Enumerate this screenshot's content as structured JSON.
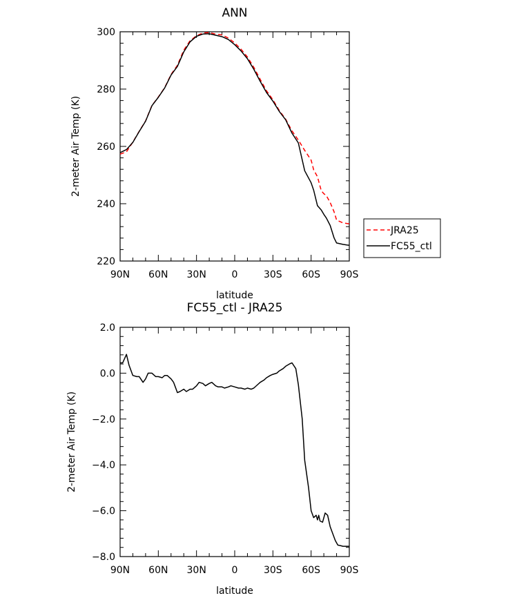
{
  "chart_data": [
    {
      "type": "line",
      "title": "ANN",
      "xlabel": "latitude",
      "ylabel": "2-meter Air Temp (K)",
      "xlim": [
        90,
        -90
      ],
      "ylim": [
        220,
        300
      ],
      "xticks": [
        90,
        60,
        30,
        0,
        -30,
        -60,
        -90
      ],
      "xtick_labels": [
        "90N",
        "60N",
        "30N",
        "0",
        "30S",
        "60S",
        "90S"
      ],
      "yticks": [
        220,
        240,
        260,
        280,
        300
      ],
      "ytick_labels": [
        "220",
        "240",
        "260",
        "280",
        "300"
      ],
      "grid": false,
      "legend": "right",
      "series": [
        {
          "name": "JRA25",
          "color": "#ff0000",
          "style": "dashed",
          "x": [
            90,
            85,
            80,
            75,
            70,
            65,
            60,
            55,
            50,
            45,
            40,
            35,
            30,
            25,
            20,
            15,
            10,
            5,
            0,
            -5,
            -10,
            -15,
            -20,
            -25,
            -30,
            -35,
            -40,
            -45,
            -50,
            -55,
            -60,
            -62,
            -65,
            -68,
            -70,
            -72,
            -75,
            -78,
            -80,
            -85,
            -88,
            -90
          ],
          "y": [
            257.3,
            258.1,
            261.5,
            265.3,
            268.9,
            274.3,
            277.2,
            280.5,
            285.1,
            288.3,
            293.6,
            296.9,
            298.6,
            299.6,
            299.7,
            299.2,
            298.9,
            297.8,
            296.1,
            293.9,
            291.2,
            287.6,
            283.4,
            279.4,
            276.3,
            272.5,
            269.5,
            265.4,
            262.2,
            258.6,
            255.2,
            251.8,
            249.4,
            244.5,
            243.5,
            242.8,
            240.4,
            237.2,
            234.3,
            233.3,
            233.1,
            233.0
          ]
        },
        {
          "name": "FC55_ctl",
          "color": "#000000",
          "style": "solid",
          "x": [
            90,
            85,
            80,
            75,
            70,
            65,
            60,
            55,
            50,
            45,
            40,
            35,
            30,
            25,
            20,
            15,
            10,
            5,
            0,
            -5,
            -10,
            -15,
            -20,
            -25,
            -30,
            -35,
            -40,
            -45,
            -50,
            -55,
            -60,
            -62,
            -65,
            -68,
            -70,
            -72,
            -75,
            -78,
            -80,
            -85,
            -88,
            -90
          ],
          "y": [
            257.8,
            258.9,
            261.4,
            265.2,
            268.8,
            274.2,
            277.1,
            280.4,
            284.9,
            287.9,
            293.0,
            296.5,
            298.4,
            299.2,
            299.3,
            298.8,
            298.3,
            297.3,
            295.5,
            293.3,
            290.6,
            286.9,
            282.7,
            278.8,
            275.8,
            272.2,
            269.3,
            264.6,
            261.2,
            251.5,
            247.3,
            244.7,
            239.3,
            237.8,
            236.3,
            235.0,
            232.4,
            228.1,
            226.3,
            225.8,
            225.6,
            225.5
          ]
        }
      ]
    },
    {
      "type": "line",
      "title": "FC55_ctl - JRA25",
      "xlabel": "latitude",
      "ylabel": "2-meter Air Temp (K)",
      "xlim": [
        90,
        -90
      ],
      "ylim": [
        -8.0,
        2.0
      ],
      "xticks": [
        90,
        60,
        30,
        0,
        -30,
        -60,
        -90
      ],
      "xtick_labels": [
        "90N",
        "60N",
        "30N",
        "0",
        "30S",
        "60S",
        "90S"
      ],
      "yticks": [
        -8.0,
        -6.0,
        -4.0,
        -2.0,
        0.0,
        2.0
      ],
      "ytick_labels": [
        "-8.0",
        "-6.0",
        "-4.0",
        "-2.0",
        "0.0",
        "2.0"
      ],
      "grid": false,
      "series": [
        {
          "color": "#000000",
          "style": "solid",
          "x": [
            90,
            88,
            85,
            83,
            80,
            77,
            75,
            72,
            70,
            68,
            65,
            62,
            60,
            57,
            55,
            53,
            50,
            48,
            45,
            43,
            40,
            38,
            35,
            33,
            30,
            28,
            25,
            23,
            20,
            18,
            15,
            13,
            10,
            8,
            5,
            3,
            0,
            -3,
            -5,
            -8,
            -10,
            -13,
            -15,
            -18,
            -20,
            -23,
            -25,
            -28,
            -30,
            -33,
            -35,
            -38,
            -40,
            -43,
            -45,
            -48,
            -50,
            -53,
            -55,
            -58,
            -60,
            -62,
            -64,
            -65,
            -66,
            -67,
            -69,
            -71,
            -73,
            -75,
            -77,
            -79,
            -81,
            -83,
            -85,
            -87,
            -88,
            -90
          ],
          "y": [
            0.45,
            0.45,
            0.82,
            0.35,
            -0.1,
            -0.15,
            -0.15,
            -0.4,
            -0.25,
            0.0,
            0.0,
            -0.15,
            -0.15,
            -0.2,
            -0.1,
            -0.1,
            -0.25,
            -0.4,
            -0.85,
            -0.8,
            -0.7,
            -0.8,
            -0.7,
            -0.7,
            -0.55,
            -0.4,
            -0.45,
            -0.55,
            -0.45,
            -0.4,
            -0.55,
            -0.6,
            -0.6,
            -0.65,
            -0.6,
            -0.55,
            -0.6,
            -0.65,
            -0.65,
            -0.7,
            -0.65,
            -0.7,
            -0.65,
            -0.5,
            -0.4,
            -0.3,
            -0.2,
            -0.1,
            -0.05,
            0.0,
            0.1,
            0.2,
            0.3,
            0.4,
            0.45,
            0.2,
            -0.5,
            -2.0,
            -3.8,
            -5.0,
            -6.0,
            -6.3,
            -6.2,
            -6.4,
            -6.2,
            -6.45,
            -6.5,
            -6.1,
            -6.2,
            -6.7,
            -7.0,
            -7.3,
            -7.5,
            -7.52,
            -7.55,
            -7.55,
            -7.55,
            -7.55
          ]
        }
      ]
    }
  ]
}
